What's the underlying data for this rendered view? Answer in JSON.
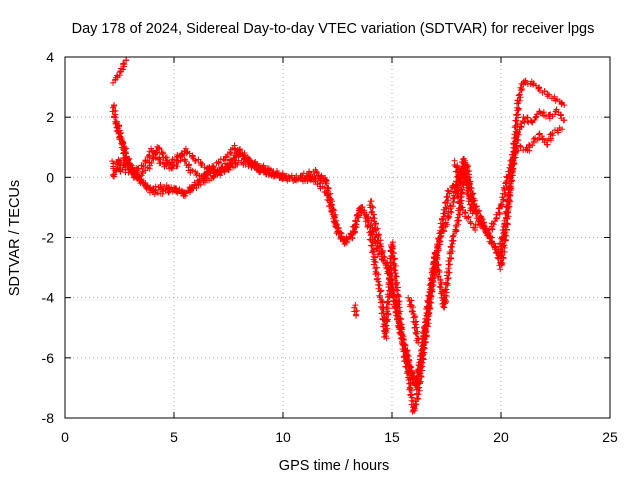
{
  "chart_data": {
    "type": "scatter",
    "title": "Day 178 of 2024, Sidereal Day-to-day VTEC variation (SDTVAR) for receiver lpgs",
    "xlabel": "GPS time / hours",
    "ylabel": "SDTVAR / TECUs",
    "xlim": [
      0,
      25
    ],
    "ylim": [
      -8,
      4
    ],
    "xticks": [
      "0",
      "5",
      "10",
      "15",
      "20",
      "25"
    ],
    "yticks": [
      "4",
      "2",
      "0",
      "-2",
      "-4",
      "-6",
      "-8"
    ],
    "grid": true,
    "marker": "+",
    "series": [
      {
        "name": "SDTVAR",
        "color": "#ff0000",
        "tracks": [
          [
            [
              2.2,
              3.2
            ],
            [
              2.4,
              3.3
            ],
            [
              2.6,
              3.6
            ],
            [
              2.8,
              3.9
            ]
          ],
          [
            [
              2.2,
              2.4
            ],
            [
              2.4,
              1.6
            ],
            [
              2.6,
              1.2
            ],
            [
              2.8,
              0.8
            ],
            [
              3.0,
              0.4
            ],
            [
              3.2,
              0.1
            ],
            [
              3.5,
              -0.2
            ],
            [
              4.0,
              -0.4
            ],
            [
              4.5,
              -0.3
            ],
            [
              5.0,
              -0.4
            ],
            [
              5.5,
              -0.5
            ],
            [
              6.0,
              -0.3
            ],
            [
              6.5,
              -0.1
            ],
            [
              7.0,
              0.1
            ],
            [
              7.5,
              0.3
            ],
            [
              8.0,
              0.5
            ],
            [
              8.5,
              0.4
            ],
            [
              9.0,
              0.2
            ],
            [
              9.5,
              0.1
            ],
            [
              10.0,
              0.0
            ],
            [
              10.5,
              0.0
            ],
            [
              11.0,
              -0.1
            ],
            [
              11.5,
              0.0
            ],
            [
              12.0,
              -0.1
            ]
          ],
          [
            [
              2.2,
              0.0
            ],
            [
              2.5,
              0.5
            ],
            [
              3.0,
              0.3
            ],
            [
              3.5,
              -0.1
            ],
            [
              4.0,
              -0.5
            ],
            [
              4.5,
              -0.5
            ],
            [
              5.0,
              -0.4
            ],
            [
              5.5,
              -0.6
            ],
            [
              6.0,
              -0.2
            ],
            [
              6.5,
              0.1
            ],
            [
              7.0,
              0.2
            ],
            [
              7.5,
              0.5
            ],
            [
              8.0,
              0.8
            ],
            [
              8.5,
              0.5
            ],
            [
              9.0,
              0.2
            ],
            [
              9.5,
              0.1
            ],
            [
              10.0,
              0.0
            ]
          ],
          [
            [
              2.2,
              0.3
            ],
            [
              2.8,
              0.2
            ],
            [
              3.5,
              0.3
            ],
            [
              4.0,
              0.9
            ],
            [
              4.5,
              0.4
            ],
            [
              5.0,
              0.3
            ],
            [
              5.5,
              0.9
            ],
            [
              6.0,
              0.6
            ],
            [
              6.5,
              0.3
            ],
            [
              7.0,
              0.2
            ],
            [
              7.5,
              0.3
            ],
            [
              8.0,
              0.9
            ],
            [
              8.5,
              0.5
            ],
            [
              9.0,
              0.3
            ],
            [
              9.5,
              0.2
            ],
            [
              10.0,
              0.1
            ]
          ],
          [
            [
              2.2,
              0.5
            ],
            [
              2.8,
              0.6
            ],
            [
              3.3,
              0.0
            ],
            [
              3.8,
              0.3
            ],
            [
              4.3,
              1.0
            ],
            [
              4.8,
              0.4
            ],
            [
              5.3,
              0.8
            ],
            [
              5.8,
              0.2
            ],
            [
              6.3,
              0.0
            ],
            [
              6.8,
              0.4
            ],
            [
              7.3,
              0.6
            ],
            [
              7.8,
              1.0
            ],
            [
              8.3,
              0.6
            ],
            [
              8.8,
              0.4
            ],
            [
              9.3,
              0.3
            ]
          ],
          [
            [
              2.4,
              1.8
            ],
            [
              2.6,
              1.2
            ],
            [
              2.8,
              0.6
            ],
            [
              3.0,
              0.2
            ],
            [
              3.2,
              0.0
            ]
          ],
          [
            [
              10.0,
              0.0
            ],
            [
              10.5,
              -0.1
            ],
            [
              11.0,
              0.1
            ],
            [
              11.5,
              0.2
            ],
            [
              12.0,
              -0.2
            ],
            [
              12.2,
              -0.8
            ],
            [
              12.5,
              -1.8
            ],
            [
              12.8,
              -2.1
            ],
            [
              13.2,
              -2.0
            ],
            [
              13.5,
              -1.0
            ],
            [
              13.8,
              -1.3
            ],
            [
              14.0,
              -1.8
            ],
            [
              14.2,
              -2.8
            ],
            [
              14.5,
              -4.0
            ],
            [
              14.7,
              -5.3
            ],
            [
              14.9,
              -3.5
            ],
            [
              15.0,
              -2.2
            ],
            [
              15.2,
              -3.5
            ],
            [
              15.4,
              -5.0
            ],
            [
              15.6,
              -6.0
            ],
            [
              15.8,
              -6.8
            ],
            [
              16.0,
              -7.8
            ],
            [
              16.2,
              -7.2
            ],
            [
              16.4,
              -6.0
            ],
            [
              16.6,
              -5.0
            ],
            [
              16.8,
              -3.8
            ],
            [
              17.0,
              -2.5
            ],
            [
              17.2,
              -3.5
            ],
            [
              17.4,
              -4.3
            ],
            [
              17.6,
              -3.0
            ],
            [
              17.8,
              -2.0
            ],
            [
              18.0,
              -1.6
            ],
            [
              18.2,
              -0.5
            ],
            [
              18.4,
              0.5
            ],
            [
              18.6,
              -0.3
            ],
            [
              18.8,
              -1.0
            ],
            [
              19.0,
              -1.5
            ],
            [
              19.2,
              -1.6
            ],
            [
              19.5,
              -2.0
            ],
            [
              19.8,
              -2.4
            ],
            [
              20.0,
              -3.0
            ],
            [
              20.2,
              -2.0
            ],
            [
              20.4,
              -0.5
            ],
            [
              20.6,
              1.0
            ],
            [
              20.8,
              2.5
            ],
            [
              21.0,
              3.2
            ],
            [
              21.5,
              3.1
            ],
            [
              22.0,
              2.8
            ],
            [
              22.5,
              2.6
            ],
            [
              22.9,
              2.4
            ]
          ],
          [
            [
              11.0,
              0.0
            ],
            [
              11.5,
              -0.1
            ],
            [
              12.0,
              -0.5
            ],
            [
              12.4,
              -1.5
            ],
            [
              12.8,
              -2.2
            ],
            [
              13.2,
              -1.8
            ],
            [
              13.6,
              -1.0
            ],
            [
              14.0,
              -1.5
            ],
            [
              14.4,
              -2.5
            ],
            [
              14.8,
              -3.0
            ],
            [
              15.1,
              -4.0
            ],
            [
              15.3,
              -4.8
            ],
            [
              15.6,
              -5.6
            ],
            [
              15.9,
              -6.6
            ],
            [
              16.1,
              -7.0
            ],
            [
              16.3,
              -6.2
            ],
            [
              16.6,
              -4.5
            ],
            [
              16.9,
              -3.0
            ],
            [
              17.2,
              -2.0
            ],
            [
              17.5,
              -1.5
            ],
            [
              17.8,
              -0.8
            ],
            [
              18.1,
              0.2
            ],
            [
              18.4,
              0.0
            ],
            [
              18.7,
              -0.8
            ],
            [
              19.0,
              -1.2
            ],
            [
              19.3,
              -1.8
            ],
            [
              19.6,
              -2.2
            ],
            [
              19.9,
              -2.6
            ],
            [
              20.2,
              -1.5
            ],
            [
              20.5,
              0.2
            ],
            [
              20.8,
              1.5
            ],
            [
              21.1,
              2.0
            ],
            [
              21.4,
              1.8
            ],
            [
              21.8,
              2.2
            ],
            [
              22.2,
              2.0
            ],
            [
              22.6,
              2.2
            ],
            [
              22.9,
              1.9
            ]
          ],
          [
            [
              14.0,
              -0.8
            ],
            [
              14.3,
              -1.8
            ],
            [
              14.6,
              -2.6
            ],
            [
              14.9,
              -3.2
            ],
            [
              15.2,
              -4.5
            ],
            [
              15.5,
              -5.5
            ],
            [
              15.8,
              -6.3
            ],
            [
              16.1,
              -6.8
            ],
            [
              16.4,
              -5.8
            ],
            [
              16.7,
              -4.2
            ],
            [
              17.0,
              -2.8
            ],
            [
              17.3,
              -1.5
            ],
            [
              17.6,
              -0.5
            ],
            [
              17.9,
              -0.2
            ],
            [
              18.2,
              -1.0
            ],
            [
              18.5,
              -1.4
            ],
            [
              18.8,
              -1.7
            ],
            [
              19.1,
              -1.4
            ],
            [
              19.4,
              -1.9
            ],
            [
              19.7,
              -1.5
            ],
            [
              20.0,
              -1.0
            ],
            [
              20.3,
              0.0
            ],
            [
              20.6,
              0.8
            ],
            [
              20.9,
              1.0
            ],
            [
              21.2,
              0.9
            ],
            [
              21.5,
              1.2
            ],
            [
              21.8,
              1.4
            ],
            [
              22.1,
              1.1
            ],
            [
              22.4,
              1.5
            ],
            [
              22.8,
              1.6
            ]
          ],
          [
            [
              13.3,
              -4.3
            ],
            [
              13.35,
              -4.6
            ]
          ],
          [
            [
              17.9,
              0.5
            ],
            [
              18.1,
              -0.2
            ],
            [
              18.3,
              0.6
            ],
            [
              18.5,
              -0.6
            ],
            [
              18.7,
              -1.2
            ]
          ],
          [
            [
              15.8,
              -4.0
            ],
            [
              16.0,
              -4.6
            ],
            [
              16.2,
              -5.5
            ]
          ]
        ]
      }
    ]
  }
}
